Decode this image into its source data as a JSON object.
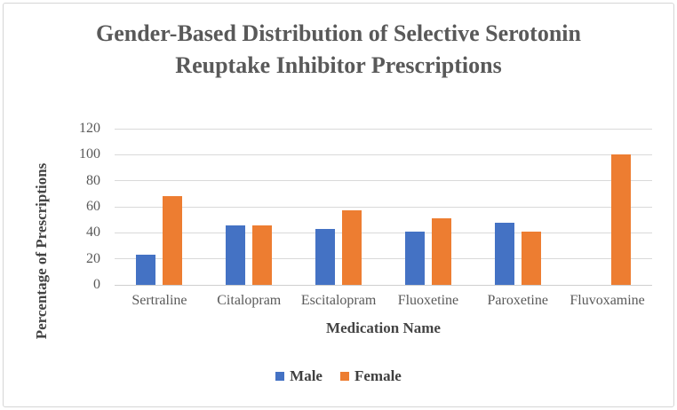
{
  "chart_data": {
    "type": "bar",
    "title": "Gender-Based Distribution of Selective Serotonin Reuptake Inhibitor Prescriptions",
    "xlabel": "Medication Name",
    "ylabel": "Percentage of Prescriptions",
    "categories": [
      "Sertraline",
      "Citalopram",
      "Escitalopram",
      "Fluoxetine",
      "Paroxetine",
      "Fluvoxamine"
    ],
    "series": [
      {
        "name": "Male",
        "color": "#4472C4",
        "values": [
          23,
          46,
          43,
          41,
          48,
          0
        ]
      },
      {
        "name": "Female",
        "color": "#ED7D31",
        "values": [
          68,
          46,
          57,
          51,
          41,
          100
        ]
      }
    ],
    "ylim": [
      0,
      120
    ],
    "yticks": [
      0,
      20,
      40,
      60,
      80,
      100,
      120
    ],
    "grid": true,
    "legend_position": "bottom"
  },
  "colors": {
    "male_bar": "#4472C4",
    "female_bar": "#ED7D31",
    "gridline": "#d9d9d9",
    "text": "#595959",
    "frame_border": "#d6d6d6"
  }
}
